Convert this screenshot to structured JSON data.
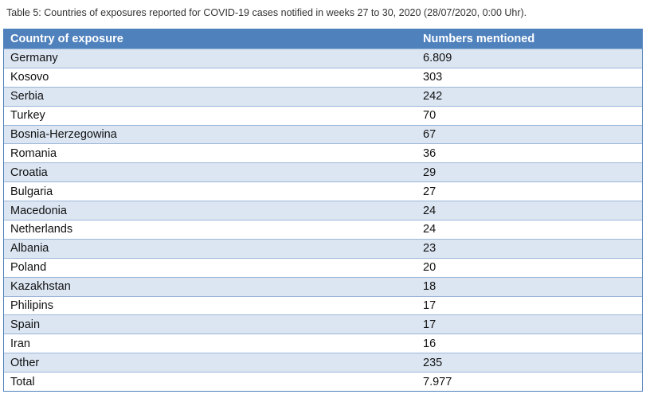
{
  "caption": "Table 5: Countries of exposures reported for COVID-19 cases notified in weeks 27 to 30, 2020 (28/07/2020, 0:00 Uhr).",
  "table": {
    "headers": [
      "Country of exposure",
      "Numbers mentioned"
    ],
    "rows": [
      {
        "country": "Germany",
        "number": "6.809"
      },
      {
        "country": "Kosovo",
        "number": "303"
      },
      {
        "country": "Serbia",
        "number": "242"
      },
      {
        "country": "Turkey",
        "number": "70"
      },
      {
        "country": "Bosnia-Herzegowina",
        "number": "67"
      },
      {
        "country": "Romania",
        "number": "36"
      },
      {
        "country": "Croatia",
        "number": "29"
      },
      {
        "country": "Bulgaria",
        "number": "27"
      },
      {
        "country": "Macedonia",
        "number": "24"
      },
      {
        "country": "Netherlands",
        "number": "24"
      },
      {
        "country": "Albania",
        "number": "23"
      },
      {
        "country": "Poland",
        "number": "20"
      },
      {
        "country": "Kazakhstan",
        "number": "18"
      },
      {
        "country": "Philipins",
        "number": "17"
      },
      {
        "country": "Spain",
        "number": "17"
      },
      {
        "country": "Iran",
        "number": "16"
      },
      {
        "country": "Other",
        "number": "235"
      },
      {
        "country": "Total",
        "number": "7.977"
      }
    ]
  },
  "colors": {
    "header_bg": "#4f81bd",
    "band_bg": "#dce6f2"
  }
}
